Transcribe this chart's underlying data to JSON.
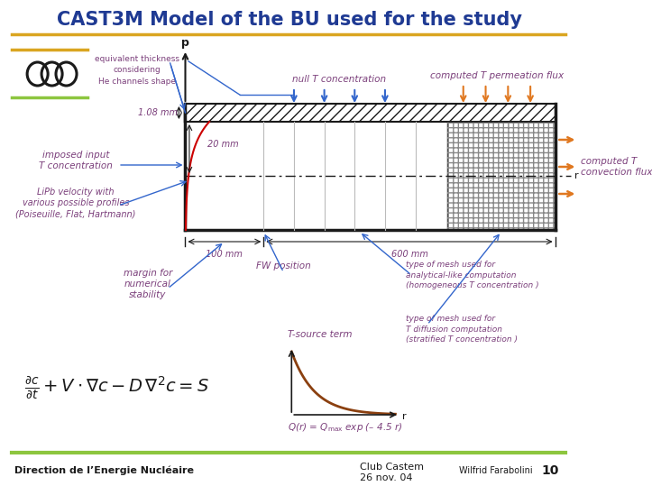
{
  "title": "CAST3M Model of the BU used for the study",
  "title_color": "#1F3A93",
  "title_fontsize": 15,
  "bg_color": "#FFFFFF",
  "header_line_color": "#DAA520",
  "footer_line_color": "#8DC63F",
  "footer_text_left": "Direction de l’Energie Nucléaire",
  "footer_text_center": "Club Castem\n26 nov. 04",
  "footer_text_right": "Wilfrid Farabolini",
  "footer_page": "10",
  "orange_color": "#E07820",
  "blue_color": "#3366CC",
  "dark_color": "#1A1A1A",
  "red_color": "#CC0000",
  "purple_color": "#7B3F7B",
  "green_color": "#8DC63F",
  "gold_color": "#DAA520",
  "brown_color": "#8B4010"
}
